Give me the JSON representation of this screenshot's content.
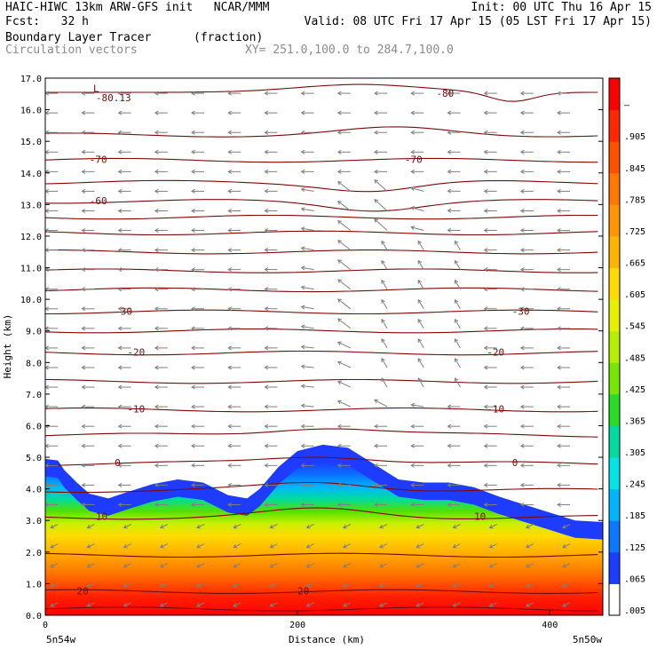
{
  "header": {
    "line1_left": "HAIC-HIWC 13km ARW-GFS init   NCAR/MMM",
    "line1_right": "Init: 00 UTC Thu 16 Apr 15",
    "line2_left": "Fcst:   32 h",
    "line2_right": "Valid: 08 UTC Fri 17 Apr 15 (05 LST Fri 17 Apr 15)",
    "field_name": "Boundary Layer Tracer",
    "field_units": "(fraction)",
    "vector_label": "Circulation vectors",
    "xy_label": "XY= 251.0,100.0 to 284.7,100.0"
  },
  "chart_data": {
    "type": "heatmap",
    "title": "Boundary Layer Tracer (fraction)",
    "xlabel": "Distance (km)",
    "ylabel": "Height (km)",
    "xlim": [
      0,
      442
    ],
    "ylim": [
      0,
      17
    ],
    "x_ticks": [
      0,
      200,
      400
    ],
    "y_ticks": [
      "0.0",
      "1.0",
      "2.0",
      "3.0",
      "4.0",
      "5.0",
      "6.0",
      "7.0",
      "8.0",
      "9.0",
      "10.0",
      "11.0",
      "12.0",
      "13.0",
      "14.0",
      "15.0",
      "16.0",
      "17.0"
    ],
    "x_endpoints": {
      "left": "5n54w",
      "right": "5n50w"
    },
    "colorbar": {
      "labels": [
        ".005",
        ".065",
        ".125",
        ".185",
        ".245",
        ".305",
        ".365",
        ".425",
        ".485",
        ".545",
        ".605",
        ".665",
        ".725",
        ".785",
        ".845",
        ".905",
        "–"
      ],
      "colors": [
        "#ffffff",
        "#1e3cff",
        "#0a78ff",
        "#00b4ff",
        "#00e6e6",
        "#00dca0",
        "#28dc28",
        "#78e600",
        "#b4f000",
        "#e6f000",
        "#ffdc00",
        "#ffb400",
        "#ff9600",
        "#ff7800",
        "#ff5000",
        "#ff2800",
        "#ff0000"
      ]
    },
    "tracer_top_km": [
      {
        "x": 0,
        "top": 4.95
      },
      {
        "x": 10,
        "top": 4.9
      },
      {
        "x": 15,
        "top": 4.6
      },
      {
        "x": 25,
        "top": 4.2
      },
      {
        "x": 35,
        "top": 3.85
      },
      {
        "x": 50,
        "top": 3.7
      },
      {
        "x": 65,
        "top": 3.9
      },
      {
        "x": 85,
        "top": 4.15
      },
      {
        "x": 105,
        "top": 4.3
      },
      {
        "x": 125,
        "top": 4.2
      },
      {
        "x": 145,
        "top": 3.8
      },
      {
        "x": 160,
        "top": 3.7
      },
      {
        "x": 170,
        "top": 4.0
      },
      {
        "x": 185,
        "top": 4.7
      },
      {
        "x": 200,
        "top": 5.2
      },
      {
        "x": 220,
        "top": 5.4
      },
      {
        "x": 240,
        "top": 5.3
      },
      {
        "x": 260,
        "top": 4.8
      },
      {
        "x": 280,
        "top": 4.3
      },
      {
        "x": 300,
        "top": 4.2
      },
      {
        "x": 320,
        "top": 4.2
      },
      {
        "x": 340,
        "top": 4.05
      },
      {
        "x": 360,
        "top": 3.75
      },
      {
        "x": 380,
        "top": 3.5
      },
      {
        "x": 400,
        "top": 3.25
      },
      {
        "x": 420,
        "top": 3.0
      },
      {
        "x": 442,
        "top": 2.95
      }
    ],
    "temperature_contours_degC": [
      {
        "label": "20",
        "y_km": 0.75
      },
      {
        "label": "10",
        "y_km": 3.1
      },
      {
        "label": "0",
        "y_km": 4.8
      },
      {
        "label": "-10",
        "y_km": 6.5
      },
      {
        "label": "-20",
        "y_km": 8.3
      },
      {
        "label": "-30",
        "y_km": 9.6
      },
      {
        "label": "-60",
        "y_km": 13.1
      },
      {
        "label": "-70",
        "y_km": 14.4
      },
      {
        "label": "-80",
        "y_km": 16.5
      },
      {
        "label": "-80.13",
        "y_km": 16.35
      },
      {
        "label": "L",
        "y_km": 16.65
      }
    ],
    "contour_lines_km": [
      0.2,
      0.75,
      1.9,
      3.1,
      3.95,
      4.8,
      5.7,
      6.5,
      7.4,
      8.3,
      9.0,
      9.6,
      10.3,
      10.9,
      11.5,
      12.1,
      12.6,
      13.1,
      13.7,
      14.4,
      15.2
    ],
    "vectors": "circulation vectors (gray arrows), mostly westward"
  }
}
